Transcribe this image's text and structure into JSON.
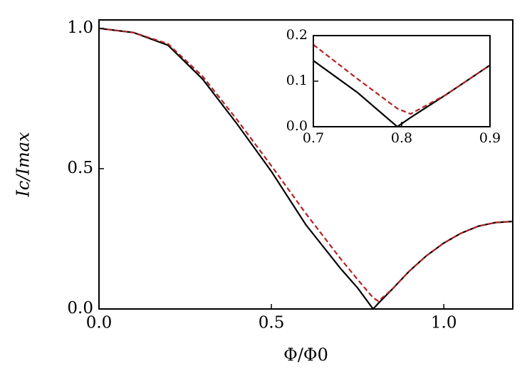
{
  "chart_data": [
    {
      "type": "line",
      "xlabel": "Φ/Φ0",
      "ylabel": "Ic/Imax",
      "x": [
        0,
        0.1,
        0.2,
        0.3,
        0.4,
        0.5,
        0.6,
        0.7,
        0.75,
        0.795,
        0.81,
        0.85,
        0.9,
        0.95,
        1.0,
        1.05,
        1.1,
        1.15,
        1.2
      ],
      "series": [
        {
          "color": "#000000",
          "linestyle": "solid",
          "values": [
            1,
            0.985,
            0.94,
            0.82,
            0.66,
            0.49,
            0.3,
            0.145,
            0.075,
            0,
            0.02,
            0.07,
            0.135,
            0.19,
            0.235,
            0.27,
            0.295,
            0.308,
            0.312
          ]
        },
        {
          "color": "#b22222",
          "linestyle": "dashed",
          "values": [
            1,
            0.985,
            0.945,
            0.83,
            0.675,
            0.51,
            0.34,
            0.18,
            0.105,
            0.04,
            0.028,
            0.07,
            0.135,
            0.19,
            0.235,
            0.27,
            0.295,
            0.308,
            0.312
          ]
        }
      ],
      "xlim": [
        0,
        1.2
      ],
      "ylim": [
        0,
        1.03
      ],
      "xticks": [
        {
          "value": 0,
          "label": "0.0"
        },
        0.5,
        {
          "value": 1,
          "label": "1.0"
        }
      ],
      "yticks": [
        {
          "value": 0,
          "label": "0.0"
        },
        0.5,
        {
          "value": 1,
          "label": "1.0"
        }
      ]
    },
    {
      "type": "line",
      "x": [
        0.7,
        0.75,
        0.795,
        0.81,
        0.85,
        0.9
      ],
      "series": [
        {
          "color": "#000000",
          "linestyle": "solid",
          "values": [
            0.145,
            0.075,
            0,
            0.02,
            0.07,
            0.135
          ]
        },
        {
          "color": "#b22222",
          "linestyle": "dashed",
          "values": [
            0.18,
            0.105,
            0.04,
            0.028,
            0.07,
            0.135
          ]
        }
      ],
      "xlim": [
        0.7,
        0.9
      ],
      "ylim": [
        0,
        0.2
      ],
      "xticks": [
        0.7,
        0.8,
        0.9
      ],
      "yticks": [
        {
          "value": 0,
          "label": "0.0"
        },
        0.1,
        0.2
      ]
    }
  ]
}
